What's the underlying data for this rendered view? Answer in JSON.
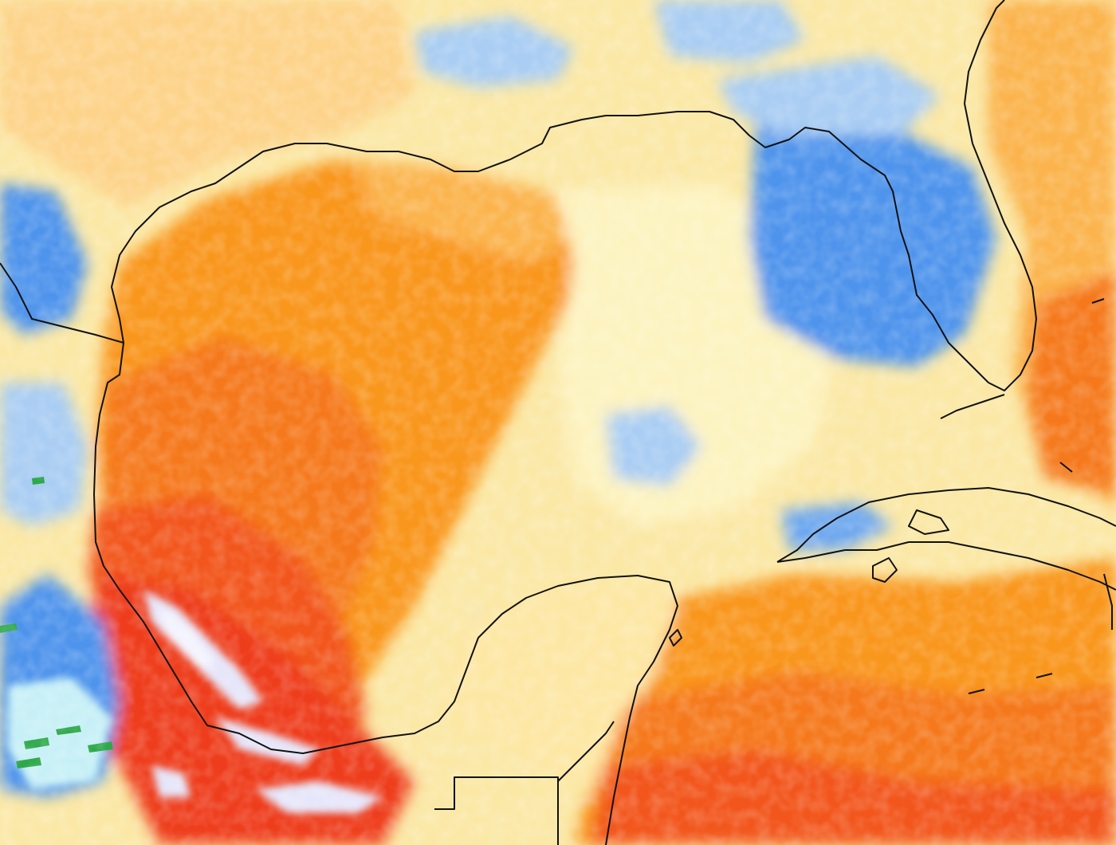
{
  "map": {
    "background_color": "#fbe8a6",
    "colors": {
      "pale_yellow": "#fdf3c0",
      "light_yellow": "#fde7a4",
      "yellow_orange": "#fdd38a",
      "light_orange": "#fbb44e",
      "orange": "#f9961a",
      "dark_orange": "#f5791a",
      "red_orange": "#f2561c",
      "red": "#ee3c1c",
      "pale_lavender": "#e6e6fa",
      "white_haze": "#f4f4ff",
      "pale_blue": "#d7e9f7",
      "light_blue": "#a9cdf3",
      "mid_blue": "#6ea8ef",
      "blue": "#4f94ec",
      "pale_cyan": "#c7f0f6",
      "green": "#2ea84a",
      "coastline": "#111111"
    }
  }
}
